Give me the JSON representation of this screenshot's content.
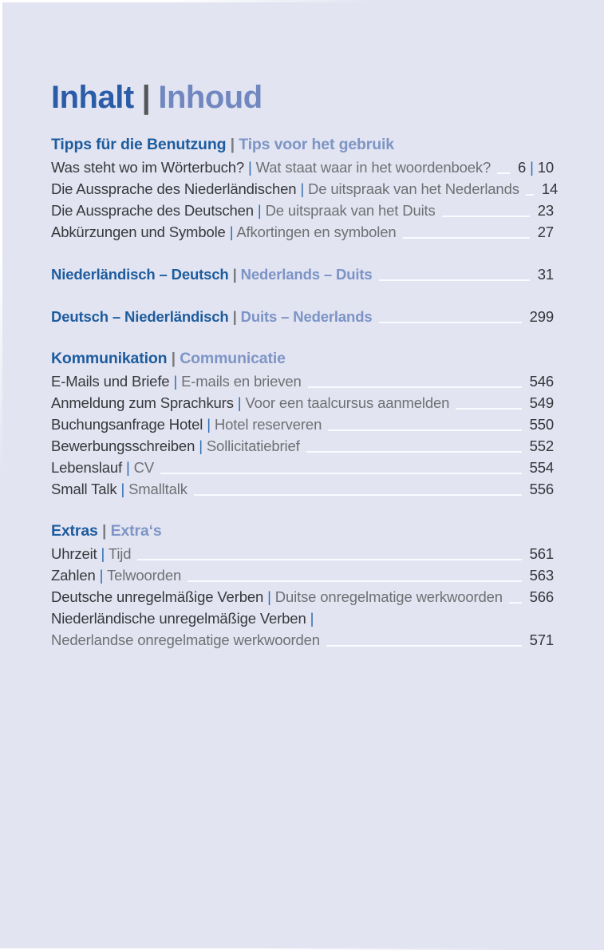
{
  "separator": "|",
  "page_title": {
    "de": "Inhalt",
    "sep": "|",
    "nl": "Inhoud"
  },
  "colors": {
    "page_background": "#e2e4f1",
    "title_de": "#2b5ca7",
    "title_nl": "#7187bf",
    "heading_de": "#1d5c9e",
    "heading_nl": "#7e95c6",
    "entry_de": "#37383c",
    "entry_separator": "#2e6cb5",
    "entry_nl": "#6f7074",
    "page_number": "#34353a",
    "leader_line": "#fafbff"
  },
  "sections": [
    {
      "type": "group",
      "heading": {
        "de": "Tipps für die Benutzung",
        "nl": "Tips voor het gebruik"
      },
      "rows": [
        {
          "de": "Was steht wo im Wörterbuch?",
          "nl": "Wat staat waar in het woordenboek?",
          "pages": [
            "6",
            "10"
          ]
        },
        {
          "de": "Die Aussprache des Niederländischen",
          "nl": "De uitspraak van het Nederlands",
          "pages": [
            "14"
          ]
        },
        {
          "de": "Die Aussprache des Deutschen",
          "nl": "De uitspraak van het Duits",
          "pages": [
            "23"
          ]
        },
        {
          "de": "Abkürzungen und Symbole",
          "nl": "Afkortingen en symbolen",
          "pages": [
            "27"
          ]
        }
      ]
    },
    {
      "type": "part",
      "row": {
        "de": "Niederländisch – Deutsch",
        "nl": "Nederlands – Duits",
        "pages": [
          "31"
        ]
      }
    },
    {
      "type": "part",
      "row": {
        "de": "Deutsch – Niederländisch",
        "nl": "Duits – Nederlands",
        "pages": [
          "299"
        ]
      }
    },
    {
      "type": "group",
      "heading": {
        "de": "Kommunikation",
        "nl": "Communicatie"
      },
      "rows": [
        {
          "de": "E-Mails und Briefe",
          "nl": "E-mails en brieven",
          "pages": [
            "546"
          ]
        },
        {
          "de": "Anmeldung zum Sprachkurs",
          "nl": "Voor een taalcursus aanmelden",
          "pages": [
            "549"
          ]
        },
        {
          "de": "Buchungsanfrage Hotel",
          "nl": "Hotel reserveren",
          "pages": [
            "550"
          ]
        },
        {
          "de": "Bewerbungsschreiben",
          "nl": "Sollicitatiebrief",
          "pages": [
            "552"
          ]
        },
        {
          "de": "Lebenslauf",
          "nl": "CV",
          "pages": [
            "554"
          ]
        },
        {
          "de": "Small Talk",
          "nl": "Smalltalk",
          "pages": [
            "556"
          ]
        }
      ]
    },
    {
      "type": "group",
      "heading": {
        "de": "Extras",
        "nl": "Extra‘s"
      },
      "rows": [
        {
          "de": "Uhrzeit",
          "nl": "Tijd",
          "pages": [
            "561"
          ]
        },
        {
          "de": "Zahlen",
          "nl": "Telwoorden",
          "pages": [
            "563"
          ]
        },
        {
          "de": "Deutsche unregelmäßige Verben",
          "nl": "Duitse onregelmatige werkwoorden",
          "pages": [
            "566"
          ]
        },
        {
          "de": "Niederländische unregelmäßige Verben",
          "trailing_sep": true
        },
        {
          "nl": "Nederlandse onregelmatige werkwoorden",
          "pages": [
            "571"
          ]
        }
      ]
    }
  ]
}
